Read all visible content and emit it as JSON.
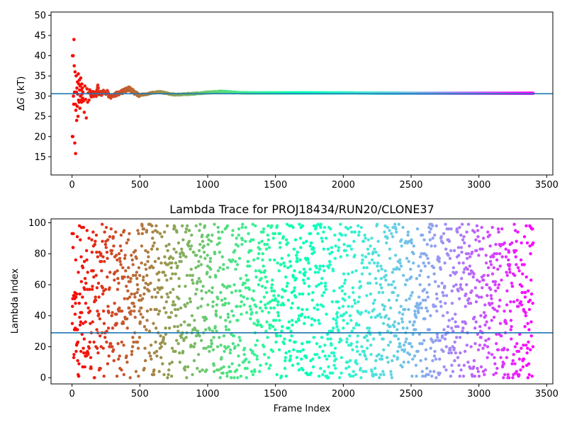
{
  "chart_data": [
    {
      "type": "scatter",
      "title": "",
      "xlabel": "",
      "ylabel": "ΔG (kT)",
      "ylabel_prefix": "Δ",
      "ylabel_var": "G",
      "ylabel_unit": " (kT)",
      "xlim": [
        -155,
        3545
      ],
      "ylim": [
        10.5,
        50.8
      ],
      "xticks": [
        0,
        500,
        1000,
        1500,
        2000,
        2500,
        3000,
        3500
      ],
      "yticks": [
        15,
        20,
        25,
        30,
        35,
        40,
        45,
        50
      ],
      "hline": 30.6,
      "hline_color": "#1f77b4",
      "colormap": "rainbow",
      "n_frames": 3400,
      "converged_value": 30.7,
      "early_points": [
        [
          2,
          20.0
        ],
        [
          3,
          40.0
        ],
        [
          6,
          20.0
        ],
        [
          8,
          40.0
        ],
        [
          10,
          30.0
        ],
        [
          12,
          28.0
        ],
        [
          14,
          44.0
        ],
        [
          16,
          37.5
        ],
        [
          18,
          31.0
        ],
        [
          20,
          18.4
        ],
        [
          22,
          36.0
        ],
        [
          24,
          28.0
        ],
        [
          26,
          15.8
        ],
        [
          28,
          26.5
        ],
        [
          30,
          35.0
        ],
        [
          32,
          31.0
        ],
        [
          34,
          24.0
        ],
        [
          36,
          32.0
        ],
        [
          38,
          27.5
        ],
        [
          40,
          33.5
        ],
        [
          42,
          30.5
        ],
        [
          44,
          25.0
        ],
        [
          46,
          35.5
        ],
        [
          48,
          29.0
        ],
        [
          50,
          33.0
        ],
        [
          52,
          28.5
        ],
        [
          54,
          34.0
        ],
        [
          56,
          31.5
        ],
        [
          58,
          27.0
        ],
        [
          60,
          32.5
        ],
        [
          62,
          30.0
        ],
        [
          64,
          34.5
        ],
        [
          66,
          29.0
        ],
        [
          68,
          31.5
        ],
        [
          70,
          28.5
        ],
        [
          72,
          33.0
        ],
        [
          74,
          30.5
        ],
        [
          76,
          32.0
        ],
        [
          78,
          29.5
        ],
        [
          80,
          31.0
        ],
        [
          85,
          28.8
        ],
        [
          90,
          26.0
        ],
        [
          95,
          32.5
        ],
        [
          100,
          29.2
        ],
        [
          105,
          24.6
        ],
        [
          110,
          31.8
        ],
        [
          115,
          28.5
        ],
        [
          120,
          30.8
        ],
        [
          125,
          29.0
        ],
        [
          130,
          31.5
        ],
        [
          140,
          29.8
        ],
        [
          150,
          31.0
        ],
        [
          160,
          30.0
        ],
        [
          170,
          31.2
        ],
        [
          180,
          30.2
        ],
        [
          190,
          32.8
        ],
        [
          200,
          30.5
        ],
        [
          210,
          31.3
        ],
        [
          220,
          30.4
        ],
        [
          230,
          31.6
        ],
        [
          240,
          30.7
        ],
        [
          260,
          31.0
        ],
        [
          280,
          29.5
        ],
        [
          300,
          30.1
        ],
        [
          320,
          30.4
        ],
        [
          340,
          30.7
        ],
        [
          360,
          30.9
        ],
        [
          380,
          31.2
        ],
        [
          400,
          31.6
        ],
        [
          420,
          31.9
        ],
        [
          440,
          31.4
        ],
        [
          460,
          30.8
        ],
        [
          480,
          30.4
        ],
        [
          500,
          30.3
        ],
        [
          550,
          30.5
        ],
        [
          600,
          30.9
        ],
        [
          650,
          31.0
        ],
        [
          700,
          30.7
        ],
        [
          750,
          30.4
        ],
        [
          800,
          30.4
        ],
        [
          900,
          30.6
        ],
        [
          1000,
          30.9
        ],
        [
          1100,
          31.1
        ],
        [
          1200,
          30.9
        ],
        [
          1300,
          30.8
        ],
        [
          1500,
          30.8
        ],
        [
          2000,
          30.8
        ],
        [
          2500,
          30.7
        ],
        [
          3000,
          30.7
        ],
        [
          3400,
          30.7
        ]
      ]
    },
    {
      "type": "scatter",
      "title": "Lambda Trace for PROJ18434/RUN20/CLONE37",
      "xlabel": "Frame Index",
      "ylabel": "Lambda Index",
      "xlim": [
        -155,
        3545
      ],
      "ylim": [
        -4,
        102.5
      ],
      "xticks": [
        0,
        500,
        1000,
        1500,
        2000,
        2500,
        3000,
        3500
      ],
      "yticks": [
        0,
        20,
        40,
        60,
        80,
        100
      ],
      "hline": 29,
      "hline_color": "#1f77b4",
      "colormap": "rainbow",
      "n_frames": 3400,
      "lambda_range": [
        0,
        99
      ]
    }
  ]
}
